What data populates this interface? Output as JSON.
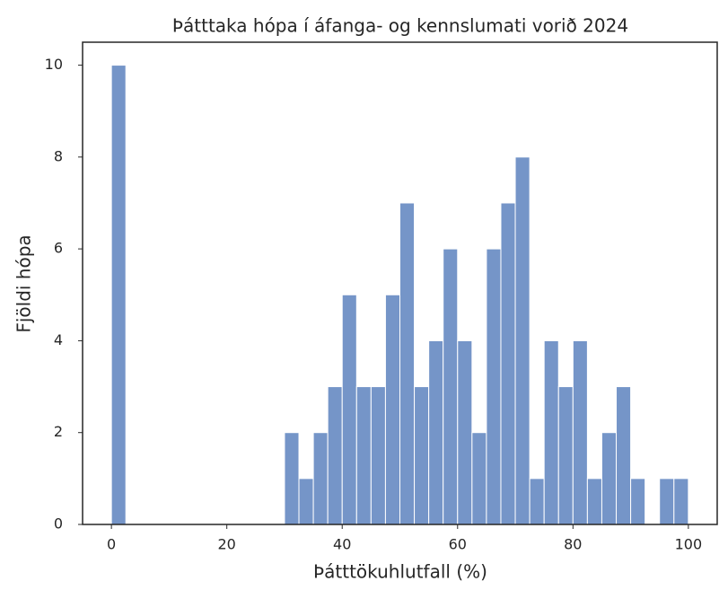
{
  "chart_data": {
    "type": "histogram",
    "title": "Þátttaka hópa í áfanga- og kennslumati vorið 2024",
    "x_label": "Þátttökuhlutfall (%)",
    "y_label": "Fjöldi hópa",
    "bins": [
      0,
      2.5,
      5,
      7.5,
      10,
      12.5,
      15,
      17.5,
      20,
      22.5,
      25,
      27.5,
      30,
      32.5,
      35,
      37.5,
      40,
      42.5,
      45,
      47.5,
      50,
      52.5,
      55,
      57.5,
      60,
      62.5,
      65,
      67.5,
      70,
      72.5,
      75,
      77.5,
      80,
      82.5,
      85,
      87.5,
      90,
      92.5,
      95,
      97.5,
      100
    ],
    "values": [
      10,
      0,
      0,
      0,
      0,
      0,
      0,
      0,
      0,
      0,
      0,
      0,
      2,
      1,
      2,
      3,
      5,
      3,
      3,
      5,
      7,
      3,
      4,
      6,
      4,
      2,
      6,
      7,
      8,
      1,
      4,
      3,
      4,
      1,
      2,
      3,
      1,
      0,
      1,
      1
    ],
    "color": "#7595c8",
    "xlim": [
      -5,
      105
    ],
    "xticks": [
      0,
      20,
      40,
      60,
      80,
      100
    ],
    "ylim": [
      0,
      10.5
    ],
    "yticks": [
      0,
      2,
      4,
      6,
      8,
      10
    ]
  }
}
